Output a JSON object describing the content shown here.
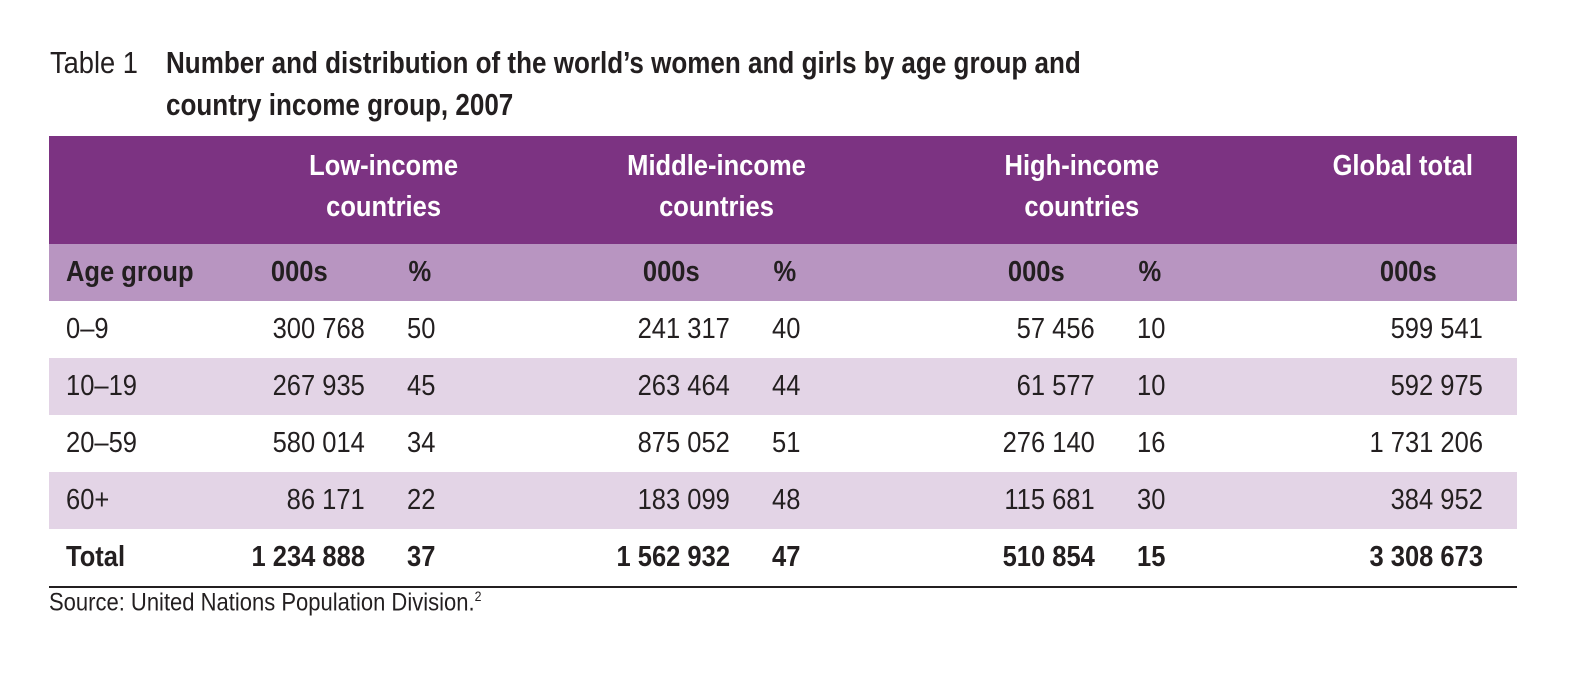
{
  "caption": {
    "label": "Table 1",
    "title_line1": "Number and distribution of the world’s women and girls by age group and",
    "title_line2": "country income group, 2007"
  },
  "table": {
    "group_headers": [
      "Low-income countries",
      "Middle-income countries",
      "High-income countries",
      "Global total"
    ],
    "group_header_lines": [
      [
        "Low-income",
        "countries"
      ],
      [
        "Middle-income",
        "countries"
      ],
      [
        "High-income",
        "countries"
      ],
      [
        "Global total"
      ]
    ],
    "sub_headers": [
      "Age group",
      "000s",
      "%",
      "000s",
      "%",
      "000s",
      "%",
      "000s"
    ],
    "rows": [
      [
        "0–9",
        "300 768",
        "50",
        "241 317",
        "40",
        "57 456",
        "10",
        "599 541"
      ],
      [
        "10–19",
        "267 935",
        "45",
        "263 464",
        "44",
        "61 577",
        "10",
        "592 975"
      ],
      [
        "20–59",
        "580 014",
        "34",
        "875 052",
        "51",
        "276 140",
        "16",
        "1 731 206"
      ],
      [
        "60+",
        "86 171",
        "22",
        "183 099",
        "48",
        "115 681",
        "30",
        "384 952"
      ]
    ],
    "total": [
      "Total",
      "1 234 888",
      "37",
      "1 562 932",
      "47",
      "510 854",
      "15",
      "3 308 673"
    ]
  },
  "source": {
    "text": "Source: United Nations Population Division.",
    "footnote": "2"
  },
  "colors": {
    "header_band": "#7c3382",
    "subheader_band": "#b895c1",
    "alt_row": "#e3d4e6",
    "text": "#231f20"
  }
}
